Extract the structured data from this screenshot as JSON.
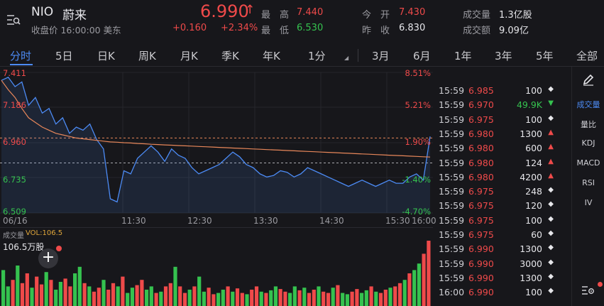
{
  "header": {
    "menu_icon": "menu-search-icon",
    "ticker": "NIO",
    "name": "蔚来",
    "status": "收盘价 16:00:00 美东",
    "price": "6.990",
    "change": "+0.160",
    "change_pct": "+2.34%",
    "stats": [
      {
        "label": "最　高",
        "value": "7.440",
        "color": "red"
      },
      {
        "label": "最　低",
        "value": "6.530",
        "color": "green"
      },
      {
        "label": "今　开",
        "value": "7.430",
        "color": "red"
      },
      {
        "label": "昨　收",
        "value": "6.830",
        "color": "white"
      },
      {
        "label": "成交量",
        "value": "1.3亿股",
        "color": "white"
      },
      {
        "label": "成交额",
        "value": "9.09亿",
        "color": "white"
      }
    ]
  },
  "tabs": [
    "分时",
    "5日",
    "日K",
    "周K",
    "月K",
    "季K",
    "年K",
    "1分",
    "3月",
    "6月",
    "1年",
    "3年",
    "5年",
    "全部"
  ],
  "active_tab": "分时",
  "chart_data": {
    "type": "line",
    "y_labels_left": [
      "7.411",
      "7.186",
      "6.960",
      "6.735",
      "6.509"
    ],
    "y_labels_right": [
      "8.51%",
      "5.21%",
      "1.90%",
      "-1.40%",
      "-4.70%"
    ],
    "x_labels": [
      "06/16",
      "11:30",
      "12:30",
      "13:30",
      "14:30",
      "15:30",
      "16:00"
    ],
    "ylim": [
      6.509,
      7.411
    ],
    "prev_close": 6.83,
    "current": 6.99,
    "series": [
      {
        "name": "price",
        "color": "#4c8bf5",
        "values": [
          7.36,
          7.38,
          7.32,
          7.35,
          7.2,
          7.25,
          7.15,
          7.18,
          7.08,
          7.12,
          7.02,
          7.06,
          7.04,
          7.08,
          6.98,
          6.92,
          6.6,
          6.58,
          6.78,
          6.76,
          6.86,
          6.9,
          6.94,
          6.9,
          6.84,
          6.92,
          6.88,
          6.86,
          6.8,
          6.76,
          6.78,
          6.8,
          6.82,
          6.86,
          6.9,
          6.87,
          6.82,
          6.8,
          6.76,
          6.74,
          6.75,
          6.78,
          6.77,
          6.74,
          6.76,
          6.8,
          6.78,
          6.76,
          6.74,
          6.72,
          6.7,
          6.68,
          6.7,
          6.72,
          6.7,
          6.68,
          6.7,
          6.72,
          6.7,
          6.7,
          6.74,
          6.76,
          6.72,
          7.0
        ]
      },
      {
        "name": "avg",
        "color": "#e8875a",
        "values": [
          7.36,
          7.3,
          7.25,
          7.18,
          7.12,
          7.09,
          7.06,
          7.04,
          7.02,
          7.01,
          7.0,
          6.99,
          6.985,
          6.98,
          6.975,
          6.97,
          6.965,
          6.963,
          6.96,
          6.958,
          6.955,
          6.953,
          6.95,
          6.948,
          6.946,
          6.944,
          6.942,
          6.94,
          6.938,
          6.936,
          6.934,
          6.932,
          6.93,
          6.928,
          6.926,
          6.924,
          6.922,
          6.92,
          6.918,
          6.916,
          6.914,
          6.912,
          6.91,
          6.908,
          6.906,
          6.904,
          6.902,
          6.9,
          6.898,
          6.896,
          6.894,
          6.892,
          6.89,
          6.888,
          6.886,
          6.884,
          6.882,
          6.88,
          6.878,
          6.876,
          6.874,
          6.872,
          6.87,
          6.868
        ]
      }
    ]
  },
  "volume": {
    "label": "成交量",
    "vol_label": "VOL:106.5",
    "max_label": "106.5万股",
    "bars": [
      0.55,
      0.3,
      0.4,
      0.62,
      0.35,
      0.5,
      0.28,
      0.45,
      0.33,
      0.52,
      0.4,
      0.25,
      0.37,
      0.42,
      0.3,
      0.5,
      0.6,
      0.35,
      0.3,
      0.22,
      0.28,
      0.4,
      0.25,
      0.35,
      0.3,
      0.45,
      0.2,
      0.28,
      0.32,
      0.4,
      0.25,
      0.3,
      0.2,
      0.22,
      0.3,
      0.35,
      0.6,
      0.3,
      0.2,
      0.25,
      0.3,
      0.45,
      0.22,
      0.28,
      0.18,
      0.2,
      0.25,
      0.3,
      0.22,
      0.27,
      0.2,
      0.18,
      0.25,
      0.3,
      0.22,
      0.2,
      0.24,
      0.3,
      0.26,
      0.22,
      0.2,
      0.3,
      0.24,
      0.28,
      0.2,
      0.25,
      0.3,
      0.22,
      0.2,
      0.28,
      0.32,
      0.2,
      0.18,
      0.22,
      0.26,
      0.2,
      0.24,
      0.3,
      0.22,
      0.2,
      0.25,
      0.28,
      0.3,
      0.35,
      0.4,
      0.5,
      0.55,
      0.65,
      0.8,
      1.0
    ]
  },
  "trades": [
    {
      "time": "15:59",
      "price": "6.985",
      "vol": "100",
      "dir": "neutral"
    },
    {
      "time": "15:59",
      "price": "6.970",
      "vol": "49.9K",
      "dir": "down"
    },
    {
      "time": "15:59",
      "price": "6.975",
      "vol": "100",
      "dir": "neutral"
    },
    {
      "time": "15:59",
      "price": "6.980",
      "vol": "1300",
      "dir": "up"
    },
    {
      "time": "15:59",
      "price": "6.980",
      "vol": "600",
      "dir": "up"
    },
    {
      "time": "15:59",
      "price": "6.980",
      "vol": "124",
      "dir": "up"
    },
    {
      "time": "15:59",
      "price": "6.980",
      "vol": "4200",
      "dir": "up"
    },
    {
      "time": "15:59",
      "price": "6.975",
      "vol": "248",
      "dir": "neutral"
    },
    {
      "time": "15:59",
      "price": "6.975",
      "vol": "120",
      "dir": "neutral"
    },
    {
      "time": "15:59",
      "price": "6.975",
      "vol": "100",
      "dir": "neutral"
    },
    {
      "time": "15:59",
      "price": "6.975",
      "vol": "60",
      "dir": "neutral"
    },
    {
      "time": "15:59",
      "price": "6.990",
      "vol": "1300",
      "dir": "neutral"
    },
    {
      "time": "15:59",
      "price": "6.990",
      "vol": "3000",
      "dir": "neutral"
    },
    {
      "time": "15:59",
      "price": "6.990",
      "vol": "1300",
      "dir": "neutral"
    },
    {
      "time": "16:00",
      "price": "6.990",
      "vol": "100",
      "dir": "neutral"
    }
  ],
  "sidebar": {
    "edit_icon": "pencil-icon",
    "items": [
      "成交量",
      "量比",
      "KDJ",
      "MACD",
      "RSI",
      "IV"
    ],
    "active": "成交量",
    "settings_icon": "settings-icon"
  },
  "colors": {
    "up": "#ef4a4a",
    "down": "#35c24f",
    "accent": "#4c8bf5",
    "bg": "#17171b"
  }
}
